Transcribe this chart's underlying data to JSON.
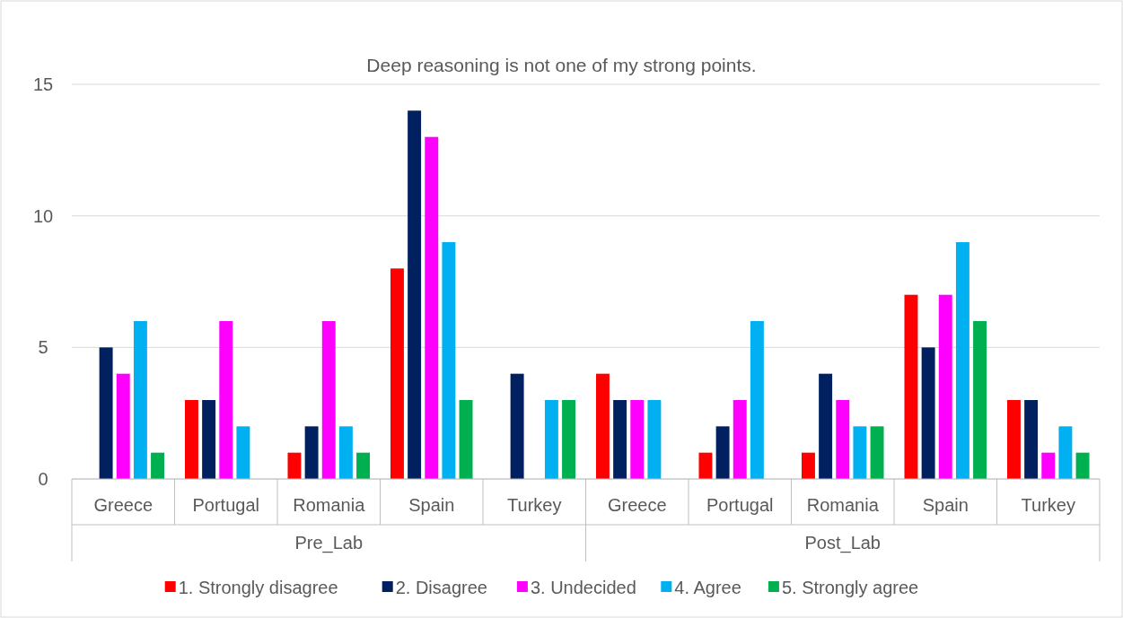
{
  "chart_data": {
    "type": "bar",
    "title": "Deep reasoning is not one of my strong points.",
    "categories": [
      "Greece",
      "Portugal",
      "Romania",
      "Spain",
      "Turkey",
      "Greece",
      "Portugal",
      "Romania",
      "Spain",
      "Turkey"
    ],
    "series": [
      {
        "name": "1. Strongly disagree",
        "color": "#ff0000",
        "values": [
          null,
          3,
          1,
          8,
          null,
          4,
          1,
          1,
          7,
          3
        ]
      },
      {
        "name": "2. Disagree",
        "color": "#002060",
        "values": [
          5,
          3,
          2,
          14,
          4,
          3,
          2,
          4,
          5,
          3
        ]
      },
      {
        "name": "3. Undecided",
        "color": "#ff00ff",
        "values": [
          4,
          6,
          6,
          13,
          null,
          3,
          3,
          3,
          7,
          1
        ]
      },
      {
        "name": "4. Agree",
        "color": "#00b0f0",
        "values": [
          6,
          2,
          2,
          9,
          3,
          3,
          6,
          2,
          9,
          2
        ]
      },
      {
        "name": "5. Strongly agree",
        "color": "#00b050",
        "values": [
          1,
          null,
          1,
          3,
          3,
          null,
          null,
          2,
          6,
          1
        ]
      }
    ],
    "annotations": [
      "Pre_Lab",
      "Post_Lab"
    ],
    "ylim": [
      0,
      15
    ],
    "yticks": [
      0,
      5,
      10,
      15
    ],
    "grid": "y",
    "legend": "bottom"
  }
}
